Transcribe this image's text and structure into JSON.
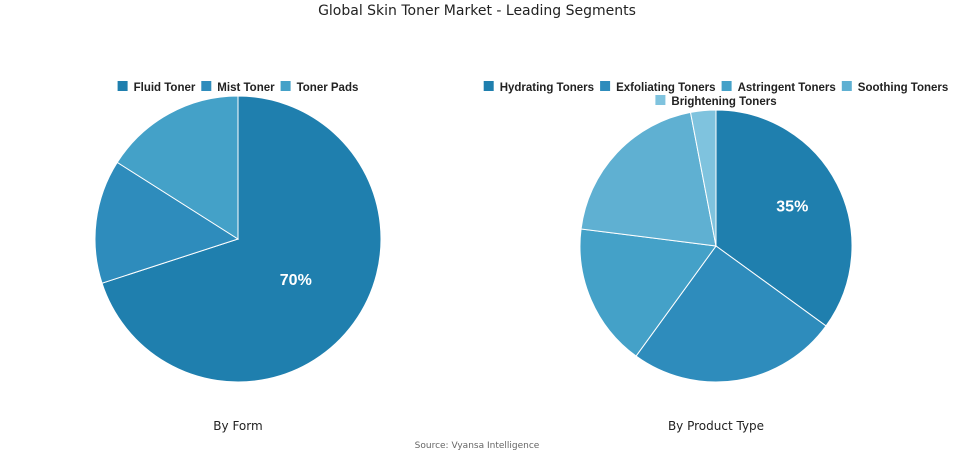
{
  "title": "Global Skin Toner Market - Leading Segments",
  "source": "Source: Vyansa Intelligence",
  "chart_data": [
    {
      "type": "pie",
      "caption": "By Form",
      "legend_position": "top",
      "categories": [
        "Fluid Toner",
        "Mist Toner",
        "Toner Pads"
      ],
      "values": [
        70,
        14,
        16
      ],
      "colors": [
        "#1f7fae",
        "#2e8cbc",
        "#44a1c8"
      ],
      "data_labels": [
        "70%",
        "",
        ""
      ]
    },
    {
      "type": "pie",
      "caption": "By Product Type",
      "legend_position": "top",
      "categories": [
        "Hydrating Toners",
        "Exfoliating Toners",
        "Astringent Toners",
        "Soothing Toners",
        "Brightening Toners"
      ],
      "values": [
        35,
        25,
        17,
        20,
        3
      ],
      "colors": [
        "#1f7fae",
        "#2e8cbc",
        "#44a1c8",
        "#5fb0d2",
        "#7fc3de"
      ],
      "data_labels": [
        "35%",
        "",
        "",
        "",
        ""
      ]
    }
  ]
}
